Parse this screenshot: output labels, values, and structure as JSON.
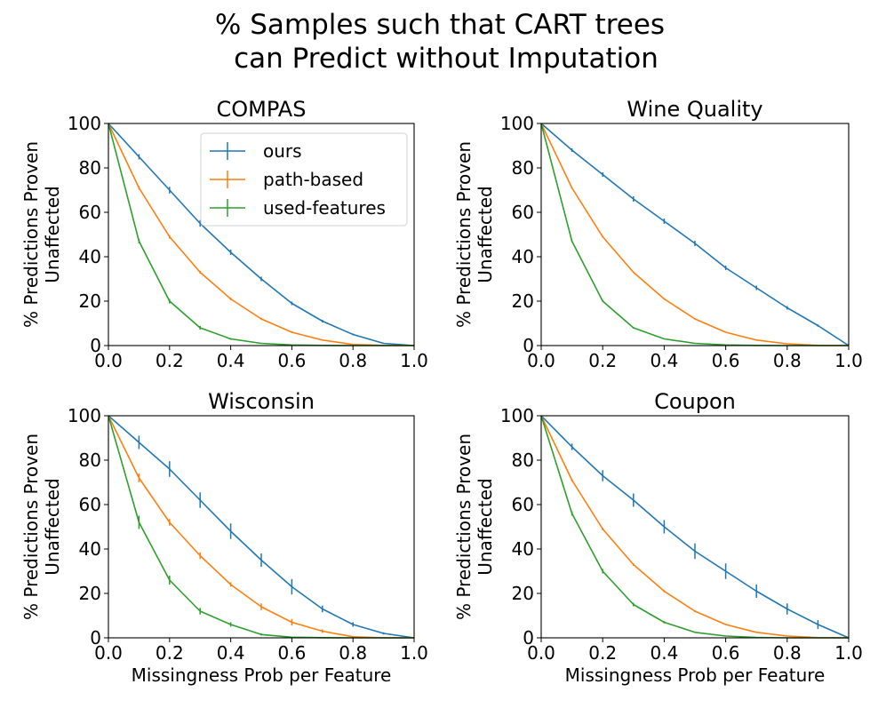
{
  "figure": {
    "title_line1": "% Samples such that CART trees",
    "title_line2": "can Predict without Imputation"
  },
  "legend": {
    "placement": "upper right of first panel",
    "entries": [
      {
        "name": "ours",
        "color": "#1f77b4"
      },
      {
        "name": "path-based",
        "color": "#ff7f0e"
      },
      {
        "name": "used-features",
        "color": "#2ca02c"
      }
    ]
  },
  "chart_data": [
    {
      "type": "line",
      "title": "COMPAS",
      "xlabel": "",
      "ylabel_line1": "% Predictions Proven",
      "ylabel_line2": "Unaffected",
      "xlim": [
        0.0,
        1.0
      ],
      "ylim": [
        0,
        100
      ],
      "xticks": [
        "0.0",
        "0.2",
        "0.4",
        "0.6",
        "0.8",
        "1.0"
      ],
      "yticks": [
        "0",
        "20",
        "40",
        "60",
        "80",
        "100"
      ],
      "x": [
        0.0,
        0.1,
        0.2,
        0.3,
        0.4,
        0.5,
        0.6,
        0.7,
        0.8,
        0.9,
        1.0
      ],
      "series": [
        {
          "name": "ours",
          "color": "#1f77b4",
          "values": [
            100,
            85,
            70,
            55,
            42,
            30,
            19,
            11,
            5,
            1,
            0
          ],
          "err": [
            0,
            1.2,
            1.5,
            1.5,
            1.2,
            1.0,
            0.8,
            0.6,
            0.4,
            0.2,
            0
          ]
        },
        {
          "name": "path-based",
          "color": "#ff7f0e",
          "values": [
            100,
            71,
            49,
            33,
            21,
            12,
            6,
            2.5,
            0.5,
            0.1,
            0
          ],
          "err": [
            0,
            0.8,
            0.8,
            0.6,
            0.6,
            0.5,
            0.4,
            0.3,
            0.2,
            0.1,
            0
          ]
        },
        {
          "name": "used-features",
          "color": "#2ca02c",
          "values": [
            100,
            47,
            20,
            8,
            3,
            1,
            0.3,
            0.1,
            0,
            0,
            0
          ],
          "err": [
            0,
            1.0,
            1.0,
            0.8,
            0.4,
            0.2,
            0.1,
            0,
            0,
            0,
            0
          ]
        }
      ]
    },
    {
      "type": "line",
      "title": "Wine Quality",
      "xlabel": "",
      "ylabel_line1": "% Predictions Proven",
      "ylabel_line2": "Unaffected",
      "xlim": [
        0.0,
        1.0
      ],
      "ylim": [
        0,
        100
      ],
      "xticks": [
        "0.0",
        "0.2",
        "0.4",
        "0.6",
        "0.8",
        "1.0"
      ],
      "yticks": [
        "0",
        "20",
        "40",
        "60",
        "80",
        "100"
      ],
      "x": [
        0.0,
        0.1,
        0.2,
        0.3,
        0.4,
        0.5,
        0.6,
        0.7,
        0.8,
        0.9,
        1.0
      ],
      "series": [
        {
          "name": "ours",
          "color": "#1f77b4",
          "values": [
            100,
            88,
            77,
            66,
            56,
            46,
            35,
            26,
            17,
            9,
            0
          ],
          "err": [
            0,
            0.8,
            1.0,
            1.2,
            1.2,
            1.2,
            1.0,
            1.0,
            0.8,
            0.5,
            0
          ]
        },
        {
          "name": "path-based",
          "color": "#ff7f0e",
          "values": [
            100,
            71,
            49,
            33,
            21,
            12,
            6,
            2.5,
            0.8,
            0.1,
            0
          ],
          "err": [
            0,
            0.4,
            0.4,
            0.4,
            0.3,
            0.3,
            0.2,
            0.2,
            0.1,
            0,
            0
          ]
        },
        {
          "name": "used-features",
          "color": "#2ca02c",
          "values": [
            100,
            47,
            20,
            8,
            3,
            1,
            0.3,
            0.1,
            0,
            0,
            0
          ],
          "err": [
            0,
            0.4,
            0.4,
            0.3,
            0.2,
            0.1,
            0,
            0,
            0,
            0,
            0
          ]
        }
      ]
    },
    {
      "type": "line",
      "title": "Wisconsin",
      "xlabel": "Missingness Prob per Feature",
      "ylabel_line1": "% Predictions Proven",
      "ylabel_line2": "Unaffected",
      "xlim": [
        0.0,
        1.0
      ],
      "ylim": [
        0,
        100
      ],
      "xticks": [
        "0.0",
        "0.2",
        "0.4",
        "0.6",
        "0.8",
        "1.0"
      ],
      "yticks": [
        "0",
        "20",
        "40",
        "60",
        "80",
        "100"
      ],
      "x": [
        0.0,
        0.1,
        0.2,
        0.3,
        0.4,
        0.5,
        0.6,
        0.7,
        0.8,
        0.9,
        1.0
      ],
      "series": [
        {
          "name": "ours",
          "color": "#1f77b4",
          "values": [
            100,
            88,
            76,
            62,
            48,
            35,
            23,
            13,
            6,
            2,
            0
          ],
          "err": [
            0,
            3.0,
            3.5,
            3.5,
            3.5,
            3.0,
            3.5,
            1.5,
            1.0,
            0.5,
            0
          ]
        },
        {
          "name": "path-based",
          "color": "#ff7f0e",
          "values": [
            100,
            72,
            52,
            37,
            24,
            14,
            7,
            3,
            0.5,
            0,
            0
          ],
          "err": [
            0,
            2.0,
            1.5,
            1.5,
            1.0,
            1.5,
            1.5,
            0.8,
            0.3,
            0,
            0
          ]
        },
        {
          "name": "used-features",
          "color": "#2ca02c",
          "values": [
            100,
            52,
            26,
            12,
            6,
            1.5,
            0.3,
            0.1,
            0,
            0,
            0
          ],
          "err": [
            0,
            3.0,
            2.0,
            1.5,
            1.0,
            0.5,
            0.2,
            0,
            0,
            0,
            0
          ]
        }
      ]
    },
    {
      "type": "line",
      "title": "Coupon",
      "xlabel": "Missingness Prob per Feature",
      "ylabel_line1": "% Predictions Proven",
      "ylabel_line2": "Unaffected",
      "xlim": [
        0.0,
        1.0
      ],
      "ylim": [
        0,
        100
      ],
      "xticks": [
        "0.0",
        "0.2",
        "0.4",
        "0.6",
        "0.8",
        "1.0"
      ],
      "yticks": [
        "0",
        "20",
        "40",
        "60",
        "80",
        "100"
      ],
      "x": [
        0.0,
        0.1,
        0.2,
        0.3,
        0.4,
        0.5,
        0.6,
        0.7,
        0.8,
        0.9,
        1.0
      ],
      "series": [
        {
          "name": "ours",
          "color": "#1f77b4",
          "values": [
            100,
            86,
            73,
            62,
            50,
            39,
            30,
            21,
            13,
            6,
            0
          ],
          "err": [
            0,
            1.5,
            2.5,
            3.0,
            3.0,
            3.5,
            3.5,
            3.0,
            2.5,
            2.0,
            0
          ]
        },
        {
          "name": "path-based",
          "color": "#ff7f0e",
          "values": [
            100,
            71,
            49,
            33,
            21,
            12,
            6,
            2.5,
            0.8,
            0.1,
            0
          ],
          "err": [
            0,
            0.6,
            0.6,
            0.6,
            0.5,
            0.4,
            0.3,
            0.2,
            0.1,
            0,
            0
          ]
        },
        {
          "name": "used-features",
          "color": "#2ca02c",
          "values": [
            100,
            56,
            30,
            15,
            7,
            2.5,
            0.8,
            0.2,
            0,
            0,
            0
          ],
          "err": [
            0,
            1.0,
            1.0,
            0.8,
            0.5,
            0.3,
            0.1,
            0,
            0,
            0,
            0
          ]
        }
      ]
    }
  ]
}
